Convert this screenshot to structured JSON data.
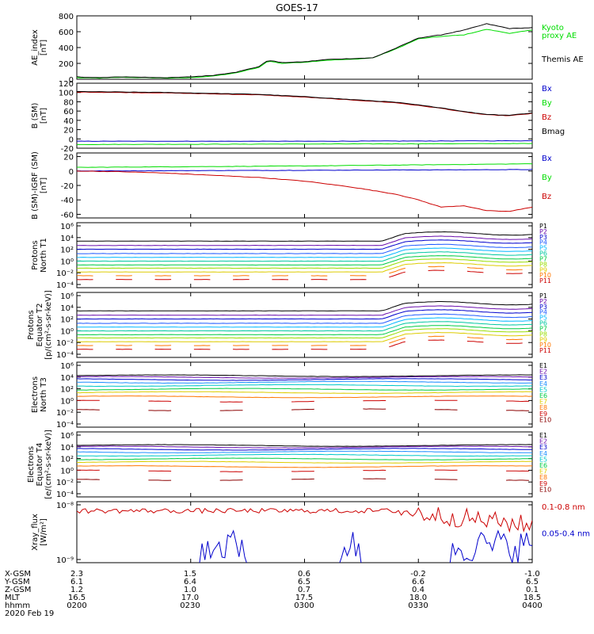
{
  "title": "GOES-17",
  "colors": {
    "black": "#000000",
    "green": "#00dd00",
    "blue": "#0000cc",
    "red": "#cc0000",
    "darkred": "#8b0000"
  },
  "chart_data": [
    {
      "type": "line",
      "ylabel": [
        "AE_index",
        "[nT]"
      ],
      "yticks": [
        "800",
        "600",
        "400",
        "200",
        "0"
      ],
      "ylim": [
        0,
        800
      ],
      "scale": "linear",
      "legend": [
        {
          "name": "Kyoto",
          "color": "#00dd00"
        },
        {
          "name": "proxy AE",
          "color": "#00dd00"
        },
        {
          "name": "Themis AE",
          "color": "#000000"
        }
      ],
      "series": [
        {
          "name": "Kyoto proxy AE",
          "color": "#00dd00",
          "x": [
            0,
            0.05,
            0.1,
            0.15,
            0.2,
            0.25,
            0.3,
            0.35,
            0.4,
            0.42,
            0.45,
            0.5,
            0.55,
            0.6,
            0.65,
            0.7,
            0.75,
            0.8,
            0.85,
            0.9,
            0.95,
            1
          ],
          "y": [
            20,
            15,
            25,
            20,
            15,
            20,
            40,
            80,
            150,
            230,
            200,
            215,
            240,
            250,
            270,
            380,
            510,
            540,
            560,
            630,
            580,
            620
          ]
        },
        {
          "name": "Themis AE",
          "color": "#000000",
          "x": [
            0,
            0.05,
            0.1,
            0.15,
            0.2,
            0.25,
            0.3,
            0.35,
            0.4,
            0.42,
            0.45,
            0.5,
            0.55,
            0.6,
            0.65,
            0.7,
            0.75,
            0.8,
            0.85,
            0.9,
            0.95,
            1
          ],
          "y": [
            30,
            20,
            30,
            25,
            20,
            30,
            50,
            90,
            160,
            240,
            210,
            220,
            250,
            260,
            270,
            390,
            520,
            560,
            620,
            700,
            640,
            650
          ]
        }
      ]
    },
    {
      "type": "line",
      "ylabel": [
        "B (SM)",
        "[nT]"
      ],
      "yticks": [
        "120",
        "100",
        "80",
        "60",
        "40",
        "20",
        "0",
        "-20"
      ],
      "ylim": [
        -20,
        120
      ],
      "scale": "linear",
      "legend": [
        {
          "name": "Bx",
          "color": "#0000cc"
        },
        {
          "name": "By",
          "color": "#00dd00"
        },
        {
          "name": "Bz",
          "color": "#cc0000"
        },
        {
          "name": "Bmag",
          "color": "#000000"
        }
      ],
      "series": [
        {
          "name": "Bx",
          "color": "#0000cc",
          "x": [
            0,
            0.5,
            1
          ],
          "y": [
            -5,
            -5,
            -4
          ]
        },
        {
          "name": "By",
          "color": "#00dd00",
          "x": [
            0,
            0.5,
            1
          ],
          "y": [
            -12,
            -11,
            -10
          ]
        },
        {
          "name": "Bz",
          "color": "#cc0000",
          "x": [
            0,
            0.1,
            0.2,
            0.3,
            0.4,
            0.5,
            0.6,
            0.7,
            0.8,
            0.85,
            0.9,
            0.95,
            1
          ],
          "y": [
            101,
            100,
            99,
            97,
            95,
            90,
            84,
            78,
            66,
            58,
            52,
            50,
            55
          ]
        },
        {
          "name": "Bmag",
          "color": "#000000",
          "x": [
            0,
            0.1,
            0.2,
            0.3,
            0.4,
            0.5,
            0.6,
            0.7,
            0.8,
            0.85,
            0.9,
            0.95,
            1
          ],
          "y": [
            102,
            101,
            100,
            98,
            96,
            91,
            85,
            79,
            67,
            59,
            53,
            51,
            56
          ]
        }
      ]
    },
    {
      "type": "line",
      "ylabel": [
        "B (SM)-IGRF (SM)",
        "[nT]"
      ],
      "yticks": [
        "20",
        "0",
        "-20",
        "-40",
        "-60"
      ],
      "ylim": [
        -65,
        25
      ],
      "scale": "linear",
      "legend": [
        {
          "name": "Bx",
          "color": "#0000cc"
        },
        {
          "name": "By",
          "color": "#00dd00"
        },
        {
          "name": "Bz",
          "color": "#cc0000"
        }
      ],
      "series": [
        {
          "name": "Bx",
          "color": "#0000cc",
          "x": [
            0,
            0.5,
            1
          ],
          "y": [
            0,
            1,
            2
          ]
        },
        {
          "name": "By",
          "color": "#00dd00",
          "x": [
            0,
            0.5,
            1
          ],
          "y": [
            5,
            7,
            10
          ]
        },
        {
          "name": "Bz",
          "color": "#cc0000",
          "x": [
            0,
            0.1,
            0.2,
            0.3,
            0.4,
            0.5,
            0.6,
            0.7,
            0.75,
            0.8,
            0.85,
            0.9,
            0.95,
            1
          ],
          "y": [
            0,
            -1,
            -3,
            -6,
            -9,
            -14,
            -22,
            -32,
            -40,
            -50,
            -48,
            -55,
            -56,
            -50
          ]
        }
      ]
    },
    {
      "type": "line",
      "ylabel": [
        "Protons",
        "North T1"
      ],
      "yticks": [
        "10⁶",
        "10⁴",
        "10²",
        "10⁰",
        "10⁻²",
        "10⁻⁴"
      ],
      "ylim": [
        -5,
        7
      ],
      "scale": "log",
      "legend": [
        {
          "name": "P1",
          "color": "#000000"
        },
        {
          "name": "P2",
          "color": "#6a0dad"
        },
        {
          "name": "P3",
          "color": "#0000cc"
        },
        {
          "name": "P4",
          "color": "#1e5aff"
        },
        {
          "name": "P5",
          "color": "#00b7ff"
        },
        {
          "name": "P6",
          "color": "#00c8a0"
        },
        {
          "name": "P7",
          "color": "#00cc44"
        },
        {
          "name": "P8",
          "color": "#99dd00"
        },
        {
          "name": "P9",
          "color": "#ddcc00"
        },
        {
          "name": "P10",
          "color": "#ff7700"
        },
        {
          "name": "P11",
          "color": "#cc0000"
        }
      ],
      "series_base": [
        3.6,
        2.8,
        2.1,
        1.3,
        0.6,
        -0.1,
        -0.8,
        -1.4,
        -2.1,
        -2.8,
        -3.5
      ]
    },
    {
      "type": "line",
      "ylabel": [
        "Protons",
        "Equator T2",
        "[p/(cm²-s-sr-keV)]"
      ],
      "yticks": [
        "10⁶",
        "10⁴",
        "10²",
        "10⁰",
        "10⁻²",
        "10⁻⁴"
      ],
      "ylim": [
        -5,
        7
      ],
      "scale": "log",
      "legend": [
        {
          "name": "P1",
          "color": "#000000"
        },
        {
          "name": "P2",
          "color": "#6a0dad"
        },
        {
          "name": "P3",
          "color": "#0000cc"
        },
        {
          "name": "P4",
          "color": "#1e5aff"
        },
        {
          "name": "P5",
          "color": "#00b7ff"
        },
        {
          "name": "P6",
          "color": "#00c8a0"
        },
        {
          "name": "P7",
          "color": "#00cc44"
        },
        {
          "name": "P8",
          "color": "#99dd00"
        },
        {
          "name": "P9",
          "color": "#ddcc00"
        },
        {
          "name": "P10",
          "color": "#ff7700"
        },
        {
          "name": "P11",
          "color": "#cc0000"
        }
      ],
      "series_base": [
        3.6,
        2.8,
        2.1,
        1.3,
        0.6,
        -0.1,
        -0.8,
        -1.4,
        -2.1,
        -2.8,
        -3.5
      ]
    },
    {
      "type": "line",
      "ylabel": [
        "Electrons",
        "North T3"
      ],
      "yticks": [
        "10⁶",
        "10⁴",
        "10²",
        "10⁰",
        "10⁻²",
        "10⁻⁴"
      ],
      "ylim": [
        -5,
        7
      ],
      "scale": "log",
      "legend": [
        {
          "name": "E1",
          "color": "#000000"
        },
        {
          "name": "E2",
          "color": "#6a0dad"
        },
        {
          "name": "E3",
          "color": "#0000cc"
        },
        {
          "name": "E4",
          "color": "#1e90ff"
        },
        {
          "name": "E5",
          "color": "#00c8c8"
        },
        {
          "name": "E6",
          "color": "#00cc44"
        },
        {
          "name": "E7",
          "color": "#ddcc00"
        },
        {
          "name": "E8",
          "color": "#ff7700"
        },
        {
          "name": "E9",
          "color": "#cc0000"
        },
        {
          "name": "E10",
          "color": "#8b0000"
        }
      ],
      "series_base": [
        4.5,
        4.2,
        3.8,
        3.3,
        2.7,
        2.0,
        1.4,
        0.6,
        -0.2,
        -1.8
      ]
    },
    {
      "type": "line",
      "ylabel": [
        "Electrons",
        "Equator T4",
        "[e/(cm²-s-sr-keV)]"
      ],
      "yticks": [
        "10⁶",
        "10⁴",
        "10²",
        "10⁰",
        "10⁻²",
        "10⁻⁴"
      ],
      "ylim": [
        -5,
        7
      ],
      "scale": "log",
      "legend": [
        {
          "name": "E1",
          "color": "#000000"
        },
        {
          "name": "E2",
          "color": "#6a0dad"
        },
        {
          "name": "E3",
          "color": "#0000cc"
        },
        {
          "name": "E4",
          "color": "#1e90ff"
        },
        {
          "name": "E5",
          "color": "#00c8c8"
        },
        {
          "name": "E6",
          "color": "#00cc44"
        },
        {
          "name": "E7",
          "color": "#ddcc00"
        },
        {
          "name": "E8",
          "color": "#ff7700"
        },
        {
          "name": "E9",
          "color": "#cc0000"
        },
        {
          "name": "E10",
          "color": "#8b0000"
        }
      ],
      "series_base": [
        4.5,
        4.2,
        3.8,
        3.3,
        2.7,
        2.0,
        1.4,
        0.6,
        -0.2,
        -1.8
      ]
    },
    {
      "type": "line",
      "ylabel": [
        "Xray_flux",
        "[W/m²]"
      ],
      "yticks": [
        "10⁻⁸",
        "10⁻⁹"
      ],
      "ylim": [
        -9,
        -8
      ],
      "scale": "log",
      "legend": [
        {
          "name": "0.1-0.8 nm",
          "color": "#cc0000"
        },
        {
          "name": "0.05-0.4 nm",
          "color": "#0000cc"
        }
      ]
    }
  ],
  "xaxis": {
    "rows": [
      {
        "label": "X-GSM",
        "values": [
          "2.3",
          "1.5",
          "0.6",
          "-0.2",
          "-1.0"
        ]
      },
      {
        "label": "Y-GSM",
        "values": [
          "6.1",
          "6.4",
          "6.5",
          "6.6",
          "6.5"
        ]
      },
      {
        "label": "Z-GSM",
        "values": [
          "1.2",
          "1.0",
          "0.7",
          "0.4",
          "0.1"
        ]
      },
      {
        "label": "MLT",
        "values": [
          "16.5",
          "17.0",
          "17.5",
          "18.0",
          "18.5"
        ]
      },
      {
        "label": "hhmm",
        "values": [
          "0200",
          "0230",
          "0300",
          "0330",
          "0400"
        ]
      }
    ],
    "date": "2020 Feb 19"
  }
}
